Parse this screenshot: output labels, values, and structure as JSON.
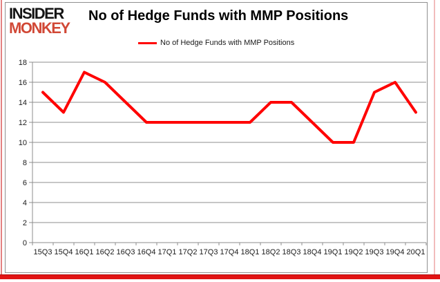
{
  "logo": {
    "line1": "INSIDER",
    "line2": "MONKEY"
  },
  "title": "No of Hedge Funds with MMP Positions",
  "colors": {
    "line_red": "#ff0000",
    "logo_red": "#d14836",
    "grid": "#8c8c8c",
    "axis_text": "#1a1a1a",
    "bottom_bar": "#e11414",
    "edge_left": "#e48181",
    "edge_right": "#f2bcbc",
    "chart_border": "#8f8f8f"
  },
  "chart_data": {
    "type": "line",
    "title": "No of Hedge Funds with MMP Positions",
    "categories": [
      "15Q3",
      "15Q4",
      "16Q1",
      "16Q2",
      "16Q3",
      "16Q4",
      "17Q1",
      "17Q2",
      "17Q3",
      "17Q4",
      "18Q1",
      "18Q2",
      "18Q3",
      "18Q4",
      "19Q1",
      "19Q2",
      "19Q3",
      "19Q4",
      "20Q1"
    ],
    "series": [
      {
        "name": "No of Hedge Funds with MMP Positions",
        "color": "#ff0000",
        "values": [
          15,
          13,
          17,
          16,
          14,
          12,
          12,
          12,
          12,
          12,
          12,
          14,
          14,
          12,
          10,
          10,
          15,
          16,
          13
        ]
      }
    ],
    "ylim": [
      0,
      18
    ],
    "ytick_step": 2,
    "yticks": [
      0,
      2,
      4,
      6,
      8,
      10,
      12,
      14,
      16,
      18
    ],
    "xlabel": "",
    "ylabel": "",
    "grid": "horizontal",
    "legend_position": "top"
  }
}
